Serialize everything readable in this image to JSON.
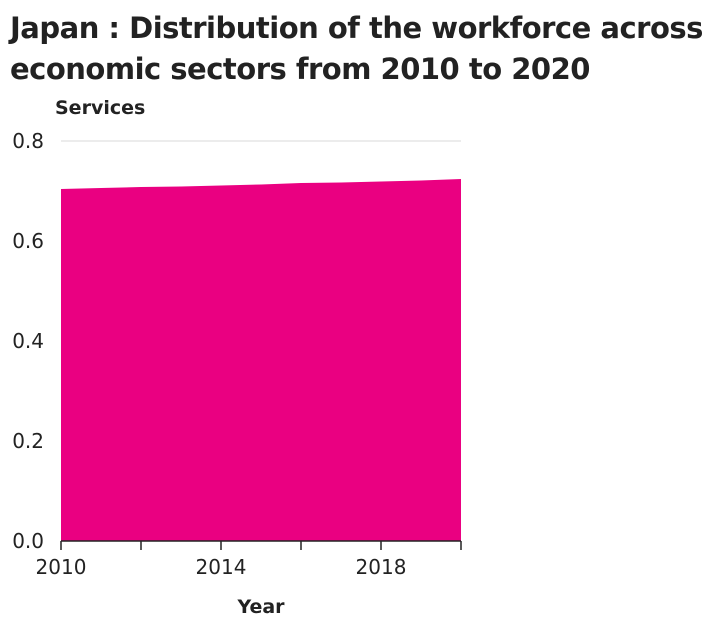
{
  "chart_data": {
    "type": "area",
    "title_lines": [
      "Japan : Distribution of the workforce across",
      "economic sectors from 2010 to 2020"
    ],
    "ylabel": "Services",
    "xlabel": "Year",
    "x": [
      2010,
      2011,
      2012,
      2013,
      2014,
      2015,
      2016,
      2017,
      2018,
      2019,
      2020
    ],
    "series": [
      {
        "values": [
          0.704,
          0.706,
          0.708,
          0.709,
          0.711,
          0.713,
          0.716,
          0.717,
          0.719,
          0.721,
          0.724
        ]
      }
    ],
    "xlim": [
      2010,
      2020
    ],
    "ylim": [
      0,
      0.8
    ],
    "yticks": [
      "0.0",
      "0.2",
      "0.4",
      "0.6",
      "0.8"
    ],
    "xticks": [
      "2010",
      "2014",
      "2018"
    ],
    "xtick_marks": [
      2010,
      2012,
      2014,
      2016,
      2018,
      2020
    ],
    "grid": "y",
    "color": "#ea0081"
  }
}
